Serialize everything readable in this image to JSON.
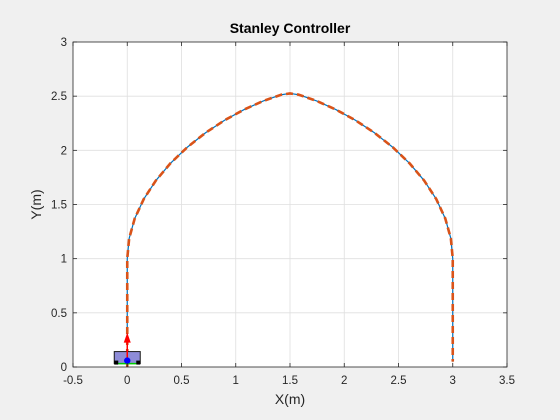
{
  "chart_data": {
    "type": "line",
    "title": "Stanley Controller",
    "xlabel": "X(m)",
    "ylabel": "Y(m)",
    "xlim": [
      -0.5,
      3.5
    ],
    "ylim": [
      0,
      3
    ],
    "xticks": [
      -0.5,
      0,
      0.5,
      1,
      1.5,
      2,
      2.5,
      3,
      3.5
    ],
    "yticks": [
      0,
      0.5,
      1,
      1.5,
      2,
      2.5,
      3
    ],
    "xtick_labels": [
      "-0.5",
      "0",
      "0.5",
      "1",
      "1.5",
      "2",
      "2.5",
      "3",
      "3.5"
    ],
    "ytick_labels": [
      "0",
      "0.5",
      "1",
      "1.5",
      "2",
      "2.5",
      "3"
    ],
    "grid": true,
    "legend": "none",
    "series": [
      {
        "role": "reference-path",
        "color": "#0072bd",
        "style": "solid",
        "x": [
          0,
          0,
          0,
          0,
          0.0175,
          0.069,
          0.1521,
          0.2636,
          0.3994,
          0.5545,
          0.7235,
          0.9005,
          1.0795,
          1.2543,
          1.4188,
          1.5,
          1.5812,
          1.7457,
          1.9205,
          2.0995,
          2.2765,
          2.4455,
          2.6006,
          2.7364,
          2.8479,
          2.931,
          2.9825,
          3,
          3,
          3,
          3
        ],
        "y": [
          0,
          0.4,
          0.8,
          1.0,
          1.1869,
          1.3711,
          1.55,
          1.721,
          1.8817,
          2.0298,
          2.1632,
          2.2797,
          2.3777,
          2.456,
          2.5134,
          2.525,
          2.5134,
          2.456,
          2.3777,
          2.2797,
          2.1632,
          2.0298,
          1.8817,
          1.721,
          1.55,
          1.3711,
          1.1869,
          1.0,
          0.6,
          0.2,
          0.05
        ]
      },
      {
        "role": "vehicle-trajectory",
        "color": "#d95319",
        "style": "dashed",
        "x": [
          0,
          0,
          0,
          0,
          0.0175,
          0.069,
          0.1521,
          0.2636,
          0.3994,
          0.5545,
          0.7235,
          0.9005,
          1.0795,
          1.2543,
          1.4188,
          1.5,
          1.5812,
          1.7457,
          1.9205,
          2.0995,
          2.2765,
          2.4455,
          2.6006,
          2.7364,
          2.8479,
          2.931,
          2.9825,
          3,
          3,
          3,
          3
        ],
        "y": [
          0,
          0.4,
          0.8,
          1.0,
          1.1869,
          1.3711,
          1.55,
          1.721,
          1.8817,
          2.0298,
          2.1632,
          2.2797,
          2.3777,
          2.456,
          2.5134,
          2.525,
          2.5134,
          2.456,
          2.3777,
          2.2797,
          2.1632,
          2.0298,
          1.8817,
          1.721,
          1.55,
          1.3711,
          1.1869,
          1.0,
          0.6,
          0.2,
          0.05
        ]
      }
    ],
    "vehicle": {
      "x": 0,
      "y": 0.05,
      "heading_deg": 90,
      "body_color": "#8e8cd8",
      "outline_color": "#1a1a1a",
      "wheel_color": "#000000",
      "arrow_color": "#ff0000",
      "axle_color": "#00cc00",
      "center_color": "#0000ff"
    }
  }
}
